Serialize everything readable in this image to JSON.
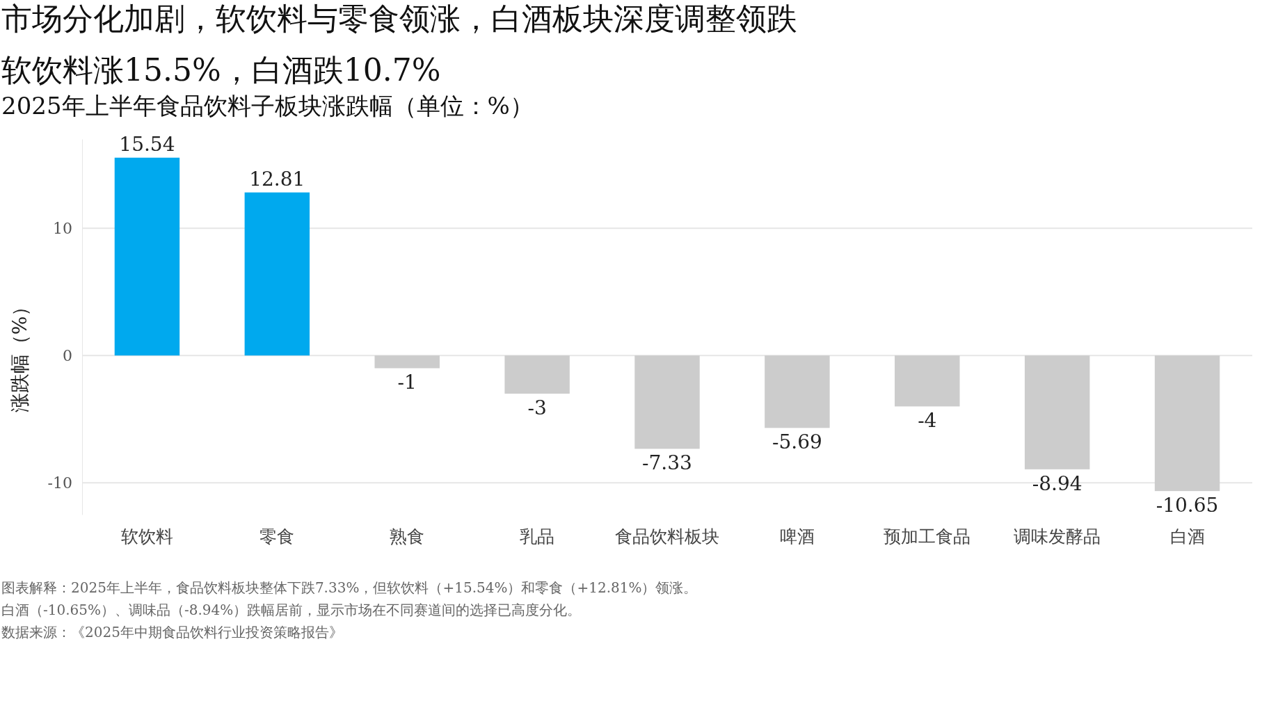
{
  "chart_data": {
    "type": "bar",
    "title": "市场分化加剧，软饮料与零食领涨，白酒板块深度调整领跌",
    "subtitle": "软饮料涨15.5%，白酒跌10.7%\n2025年上半年食品饮料子板块涨跌幅（单位：%）",
    "ylabel": "涨跌幅（%）",
    "categories": [
      "软饮料",
      "零食",
      "熟食",
      "乳品",
      "食品饮料板块",
      "啤酒",
      "预加工食品",
      "调味发酵品",
      "白酒"
    ],
    "values": [
      15.54,
      12.81,
      -1,
      -3,
      -7.33,
      -5.69,
      -4,
      -8.94,
      -10.65
    ],
    "colors": [
      "#00a9ee",
      "#00a9ee",
      "#cccccc",
      "#cccccc",
      "#cccccc",
      "#cccccc",
      "#cccccc",
      "#cccccc",
      "#cccccc"
    ],
    "ylim": [
      -12.5,
      17
    ],
    "yticks": [
      -10,
      0,
      10
    ],
    "grid": "y",
    "data_labels": true,
    "annotations": [
      "图表解释：2025年上半年，食品饮料板块整体下跌7.33%，但软饮料（+15.54%）和零食（+12.81%）领涨。",
      "白酒（-10.65%）、调味品（-8.94%）跌幅居前，显示市场在不同赛道间的选择已高度分化。",
      "数据来源：《2025年中期食品饮料行业投资策略报告》"
    ]
  }
}
